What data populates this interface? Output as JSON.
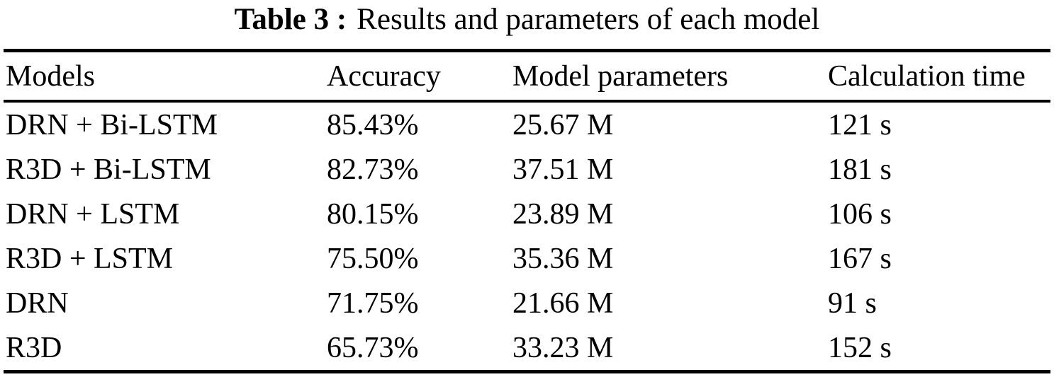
{
  "caption": {
    "label": "Table 3 :",
    "text": "Results and parameters of each model"
  },
  "table": {
    "columns": [
      "Models",
      "Accuracy",
      "Model parameters",
      "Calculation time"
    ],
    "rows": [
      {
        "model": "DRN + Bi-LSTM",
        "accuracy": "85.43%",
        "params": "25.67 M",
        "time": "121 s"
      },
      {
        "model": "R3D + Bi-LSTM",
        "accuracy": "82.73%",
        "params": "37.51 M",
        "time": "181 s"
      },
      {
        "model": "DRN + LSTM",
        "accuracy": "80.15%",
        "params": "23.89 M",
        "time": "106 s"
      },
      {
        "model": "R3D + LSTM",
        "accuracy": "75.50%",
        "params": "35.36 M",
        "time": "167 s"
      },
      {
        "model": "DRN",
        "accuracy": "71.75%",
        "params": "21.66 M",
        "time": "91 s"
      },
      {
        "model": "R3D",
        "accuracy": "65.73%",
        "params": "33.23 M",
        "time": "152 s"
      }
    ]
  }
}
